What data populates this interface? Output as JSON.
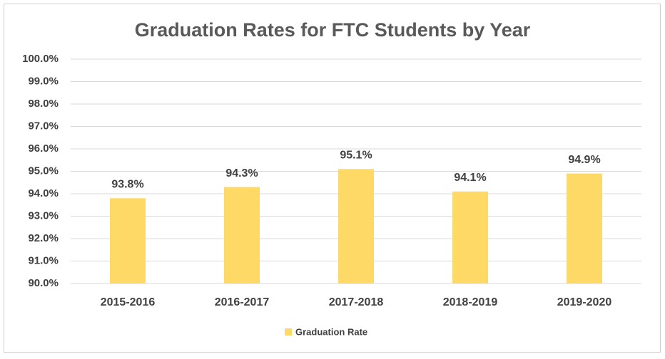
{
  "chart_data": {
    "type": "bar",
    "title": "Graduation Rates for FTC Students by Year",
    "categories": [
      "2015-2016",
      "2016-2017",
      "2017-2018",
      "2018-2019",
      "2019-2020"
    ],
    "series": [
      {
        "name": "Graduation Rate",
        "color": "#ffd966",
        "values": [
          93.8,
          94.3,
          95.1,
          94.1,
          94.9
        ],
        "value_labels": [
          "93.8%",
          "94.3%",
          "95.1%",
          "94.1%",
          "94.9%"
        ]
      }
    ],
    "ylim": [
      90,
      100
    ],
    "yticks": [
      {
        "value": 90,
        "label": "90.0%"
      },
      {
        "value": 91,
        "label": "91.0%"
      },
      {
        "value": 92,
        "label": "92.0%"
      },
      {
        "value": 93,
        "label": "93.0%"
      },
      {
        "value": 94,
        "label": "94.0%"
      },
      {
        "value": 95,
        "label": "95.0%"
      },
      {
        "value": 96,
        "label": "96.0%"
      },
      {
        "value": 97,
        "label": "97.0%"
      },
      {
        "value": 98,
        "label": "98.0%"
      },
      {
        "value": 99,
        "label": "99.0%"
      },
      {
        "value": 100,
        "label": "100.0%"
      }
    ],
    "grid": true,
    "legend": "bottom"
  }
}
